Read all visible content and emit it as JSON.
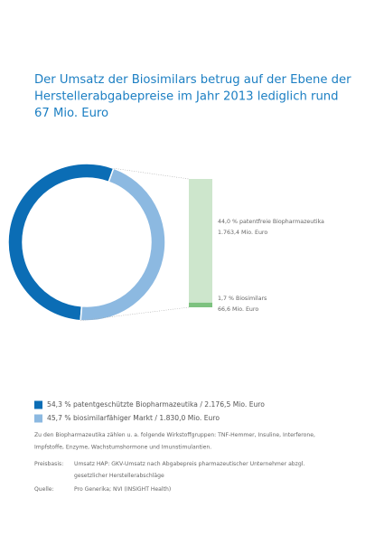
{
  "chart_data": {
    "type": "donut",
    "title_lines": [
      "Der Umsatz der Biosimilars betrug auf der Ebene der",
      "Herstellerabgabepreise im Jahr 2013 lediglich rund",
      "67 Mio. Euro"
    ],
    "values": [
      54.3,
      45.7
    ],
    "colors": [
      "#0b6db5",
      "#8cb9e1"
    ],
    "legend": [
      "54,3 % patentgeschützte Biopharmazeutika / 2.176,5 Mio. Euro",
      "45,7 % biosimilarfähiger Markt / 1.830,0 Mio. Euro"
    ],
    "breakdown": {
      "values": [
        44.0,
        1.7
      ],
      "colors": [
        "#cde6cc",
        "#7dc27f"
      ],
      "labels": [
        "44,0 % patentfreie Biopharmazeutika",
        "1,7 % Biosimilars"
      ],
      "amount_labels": [
        "1.763,4 Mio. Euro",
        "66,6 Mio. Euro"
      ]
    },
    "note_lines": [
      "Zu den Biopharmazeutika zählen u. a. folgende Wirkstoffgruppen: TNF-Hemmer, Insuline, Interferone,",
      "Impfstoffe, Enzyme, Wachstumshormone und Imunstimulantien."
    ],
    "sources": [
      {
        "label": "Preisbasis:",
        "lines": [
          "Umsatz HAP: GKV-Umsatz nach Abgabepreis pharmazeutischer Unternehmer abzgl.",
          "gesetzlicher Herstellerabschläge"
        ]
      },
      {
        "label": "Quelle:",
        "lines": [
          "Pro Generika; NVI (INSIGHT Health)"
        ]
      }
    ]
  }
}
